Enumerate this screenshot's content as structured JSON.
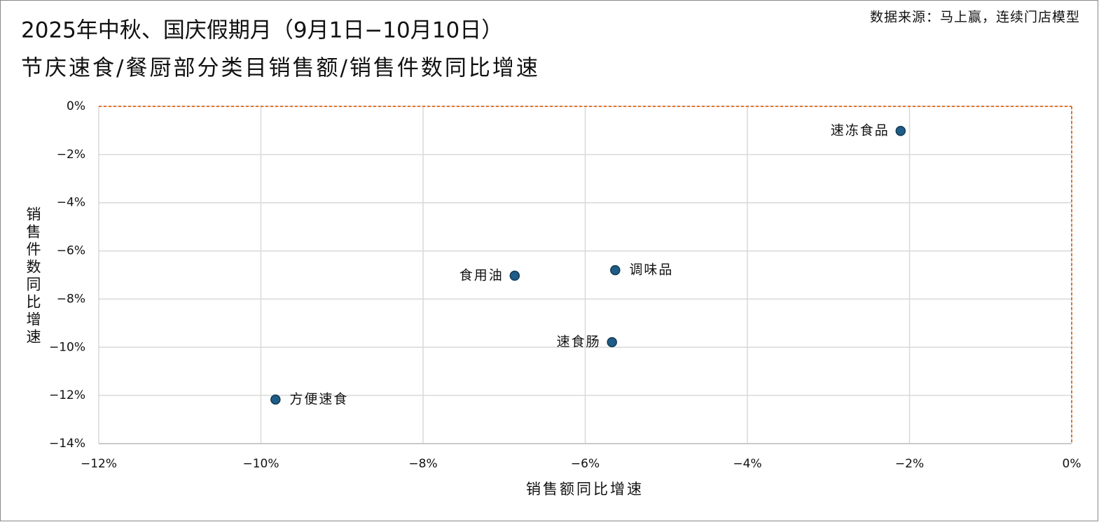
{
  "chart_data": {
    "type": "scatter",
    "title": "2025年中秋、国庆假期月（9月1日−10月10日）",
    "subtitle": "节庆速食/餐厨部分类目销售额/销售件数同比增速",
    "source": "数据来源：马上赢，连续门店模型",
    "x_label": "销售额同比增速",
    "y_label": "销售件数同比增速",
    "point_labels": [
      "速冻食品",
      "调味品",
      "食用油",
      "速食肠",
      "方便速食"
    ],
    "x": [
      -2.11,
      -5.63,
      -6.87,
      -5.67,
      -9.82
    ],
    "values": [
      -1.02,
      -6.8,
      -7.03,
      -9.79,
      -12.17
    ],
    "color": "#1f5c87",
    "xlim": [
      -12,
      0
    ],
    "xticks": [
      {
        "value": -12,
        "label": "−12%"
      },
      {
        "value": -10,
        "label": "−10%"
      },
      {
        "value": -8,
        "label": "−8%"
      },
      {
        "value": -6,
        "label": "−6%"
      },
      {
        "value": -4,
        "label": "−4%"
      },
      {
        "value": -2,
        "label": "−2%"
      },
      {
        "value": 0,
        "label": "0%"
      }
    ],
    "ylim": [
      -14,
      0
    ],
    "yticks": [
      {
        "value": 0,
        "label": "0%"
      },
      {
        "value": -2,
        "label": "−2%"
      },
      {
        "value": -4,
        "label": "−4%"
      },
      {
        "value": -6,
        "label": "−6%"
      },
      {
        "value": -8,
        "label": "−8%"
      },
      {
        "value": -10,
        "label": "−10%"
      },
      {
        "value": -12,
        "label": "−12%"
      },
      {
        "value": -14,
        "label": "−14%"
      }
    ],
    "grid": true
  }
}
